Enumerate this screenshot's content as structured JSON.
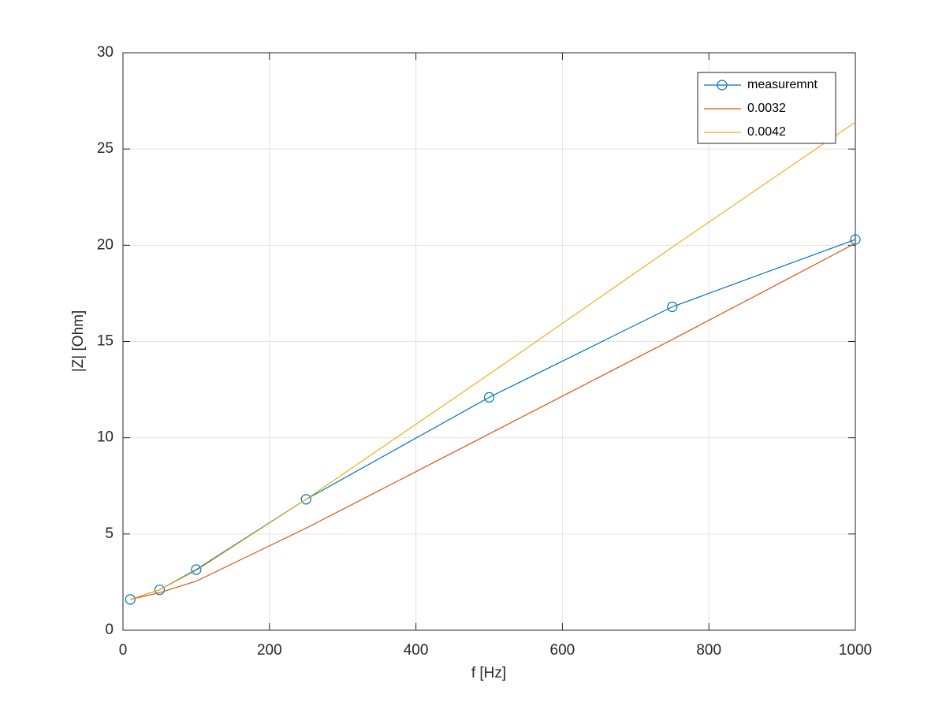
{
  "chart_data": {
    "type": "line",
    "xlabel": "f [Hz]",
    "ylabel": "|Z| [Ohm]",
    "x": [
      10,
      50,
      100,
      250,
      500,
      750,
      1000
    ],
    "series": [
      {
        "name": "measuremnt",
        "color": "#0072bd",
        "marker": "circle",
        "values": [
          1.6,
          2.1,
          3.15,
          6.8,
          12.1,
          16.8,
          20.3
        ]
      },
      {
        "name": "0.0032",
        "color": "#d95319",
        "values": [
          1.6,
          1.95,
          2.55,
          5.3,
          10.2,
          15.1,
          20.1
        ]
      },
      {
        "name": "0.0042",
        "color": "#edb120",
        "values": [
          1.6,
          2.1,
          3.1,
          6.8,
          13.3,
          19.9,
          26.4
        ]
      }
    ],
    "xlim": [
      0,
      1000
    ],
    "xticks": [
      0,
      200,
      400,
      600,
      800,
      1000
    ],
    "ylim": [
      0,
      30
    ],
    "yticks": [
      0,
      5,
      10,
      15,
      20,
      25,
      30
    ],
    "grid": true,
    "legend_position": "upper right"
  }
}
